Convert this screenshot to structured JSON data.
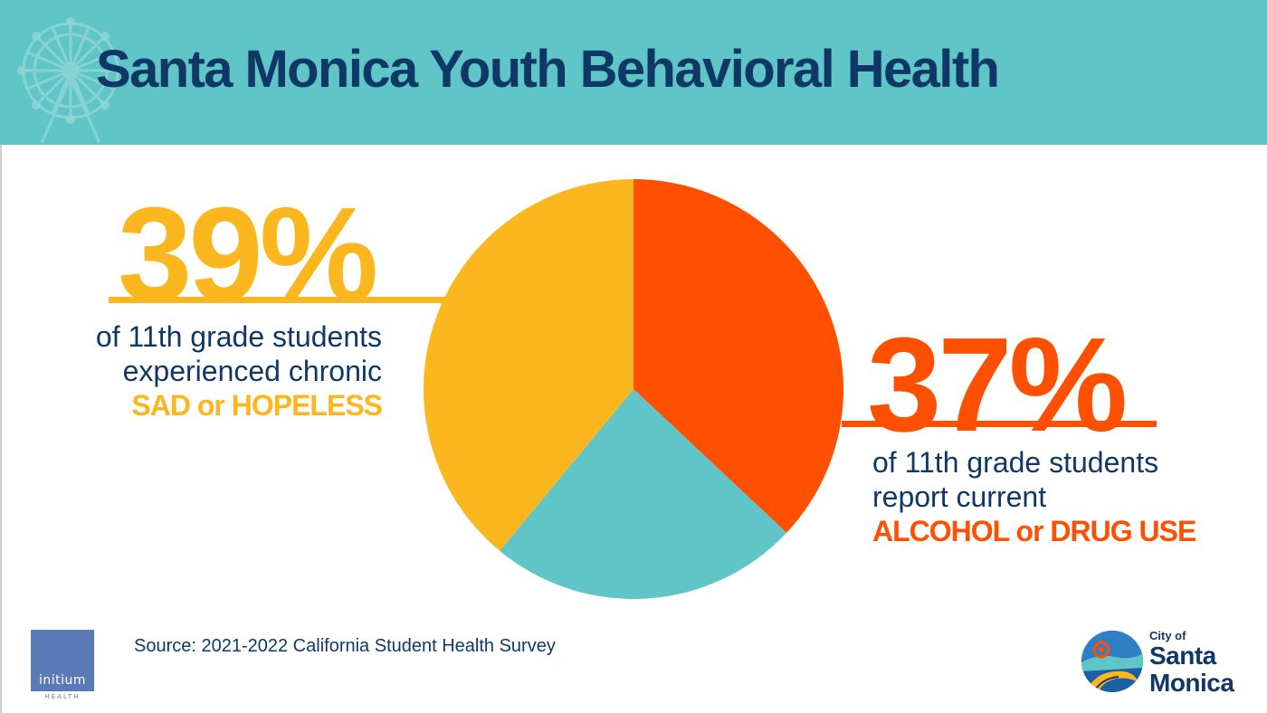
{
  "header": {
    "title": "Santa Monica Youth Behavioral Health",
    "background": "#5fc5c6",
    "title_color": "#0f3867"
  },
  "left_stat": {
    "value": "39%",
    "line1": "of 11th grade students",
    "line2": "experienced chronic",
    "emphasis": "SAD or HOPELESS",
    "color": "#fdb71e"
  },
  "right_stat": {
    "value": "37%",
    "line1": "of 11th grade students",
    "line2": "report current",
    "emphasis": "ALCOHOL or DRUG USE",
    "color": "#fe5000"
  },
  "chart_data": {
    "type": "pie",
    "title": "",
    "slices": [
      {
        "label": "ALCOHOL or DRUG USE",
        "value": 37,
        "color": "#fe5000"
      },
      {
        "label": "",
        "value": 24,
        "color": "#5fc5c6"
      },
      {
        "label": "SAD or HOPELESS",
        "value": 39,
        "color": "#fdb71e"
      }
    ],
    "legend": "none"
  },
  "footer": {
    "source": "Source: 2021-2022 California Student Health Survey",
    "initium_word": "initium",
    "initium_sub": "HEALTH",
    "city_small": "City of",
    "city_line1": "Santa",
    "city_line2": "Monica"
  },
  "icons": [
    "ferris-wheel-icon",
    "initium-logo-icon",
    "city-seal-icon"
  ]
}
